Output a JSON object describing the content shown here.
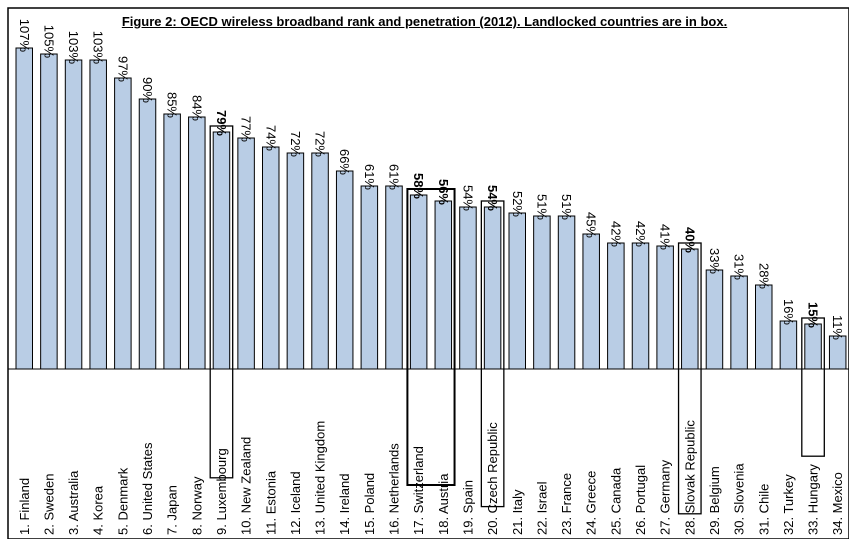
{
  "chart_data": {
    "type": "bar",
    "title": "Figure 2: OECD wireless  broadband rank and penetration (2012).  Landlocked countries are in box.",
    "categories": [
      "1.  Finland",
      "2.  Sweden",
      "3.  Australia",
      "4.  Korea",
      "5.  Denmark",
      "6.  United States",
      "7.  Japan",
      "8.  Norway",
      "9.  Luxembourg",
      "10. New Zealand",
      "11. Estonia",
      "12. Iceland",
      "13. United Kingdom",
      "14. Ireland",
      "15. Poland",
      "16. Netherlands",
      "17. Switzerland",
      "18. Austria",
      "19. Spain",
      "20. Czech Republic",
      "21. Italy",
      "22. Israel",
      "23. France",
      "24. Greece",
      "25. Canada",
      "26. Portugal",
      "27. Germany",
      "28. Slovak Republic",
      "29. Belgium",
      "30. Slovenia",
      "31. Chile",
      "32. Turkey",
      "33. Hungary",
      "34. Mexico"
    ],
    "values": [
      107,
      105,
      103,
      103,
      97,
      90,
      85,
      84,
      79,
      77,
      74,
      72,
      72,
      66,
      61,
      61,
      58,
      56,
      54,
      54,
      52,
      51,
      51,
      45,
      42,
      42,
      41,
      40,
      33,
      31,
      28,
      16,
      15,
      11
    ],
    "value_labels": [
      "107%",
      "105%",
      "103%",
      "103%",
      "97%",
      "90%",
      "85%",
      "84%",
      "79%",
      "77%",
      "74%",
      "72%",
      "72%",
      "66%",
      "61%",
      "61%",
      "58%",
      "56%",
      "54%",
      "54%",
      "52%",
      "51%",
      "51%",
      "45%",
      "42%",
      "42%",
      "41%",
      "40%",
      "33%",
      "31%",
      "28%",
      "16%",
      "15%",
      "11%"
    ],
    "landlocked": [
      false,
      false,
      false,
      false,
      false,
      false,
      false,
      false,
      true,
      false,
      false,
      false,
      false,
      false,
      false,
      false,
      true,
      true,
      false,
      true,
      false,
      false,
      false,
      false,
      false,
      false,
      false,
      true,
      false,
      false,
      false,
      false,
      true,
      false
    ],
    "ylim": [
      0,
      110
    ],
    "bar_color": "#b9cde5",
    "grid": false,
    "legend": "none"
  }
}
